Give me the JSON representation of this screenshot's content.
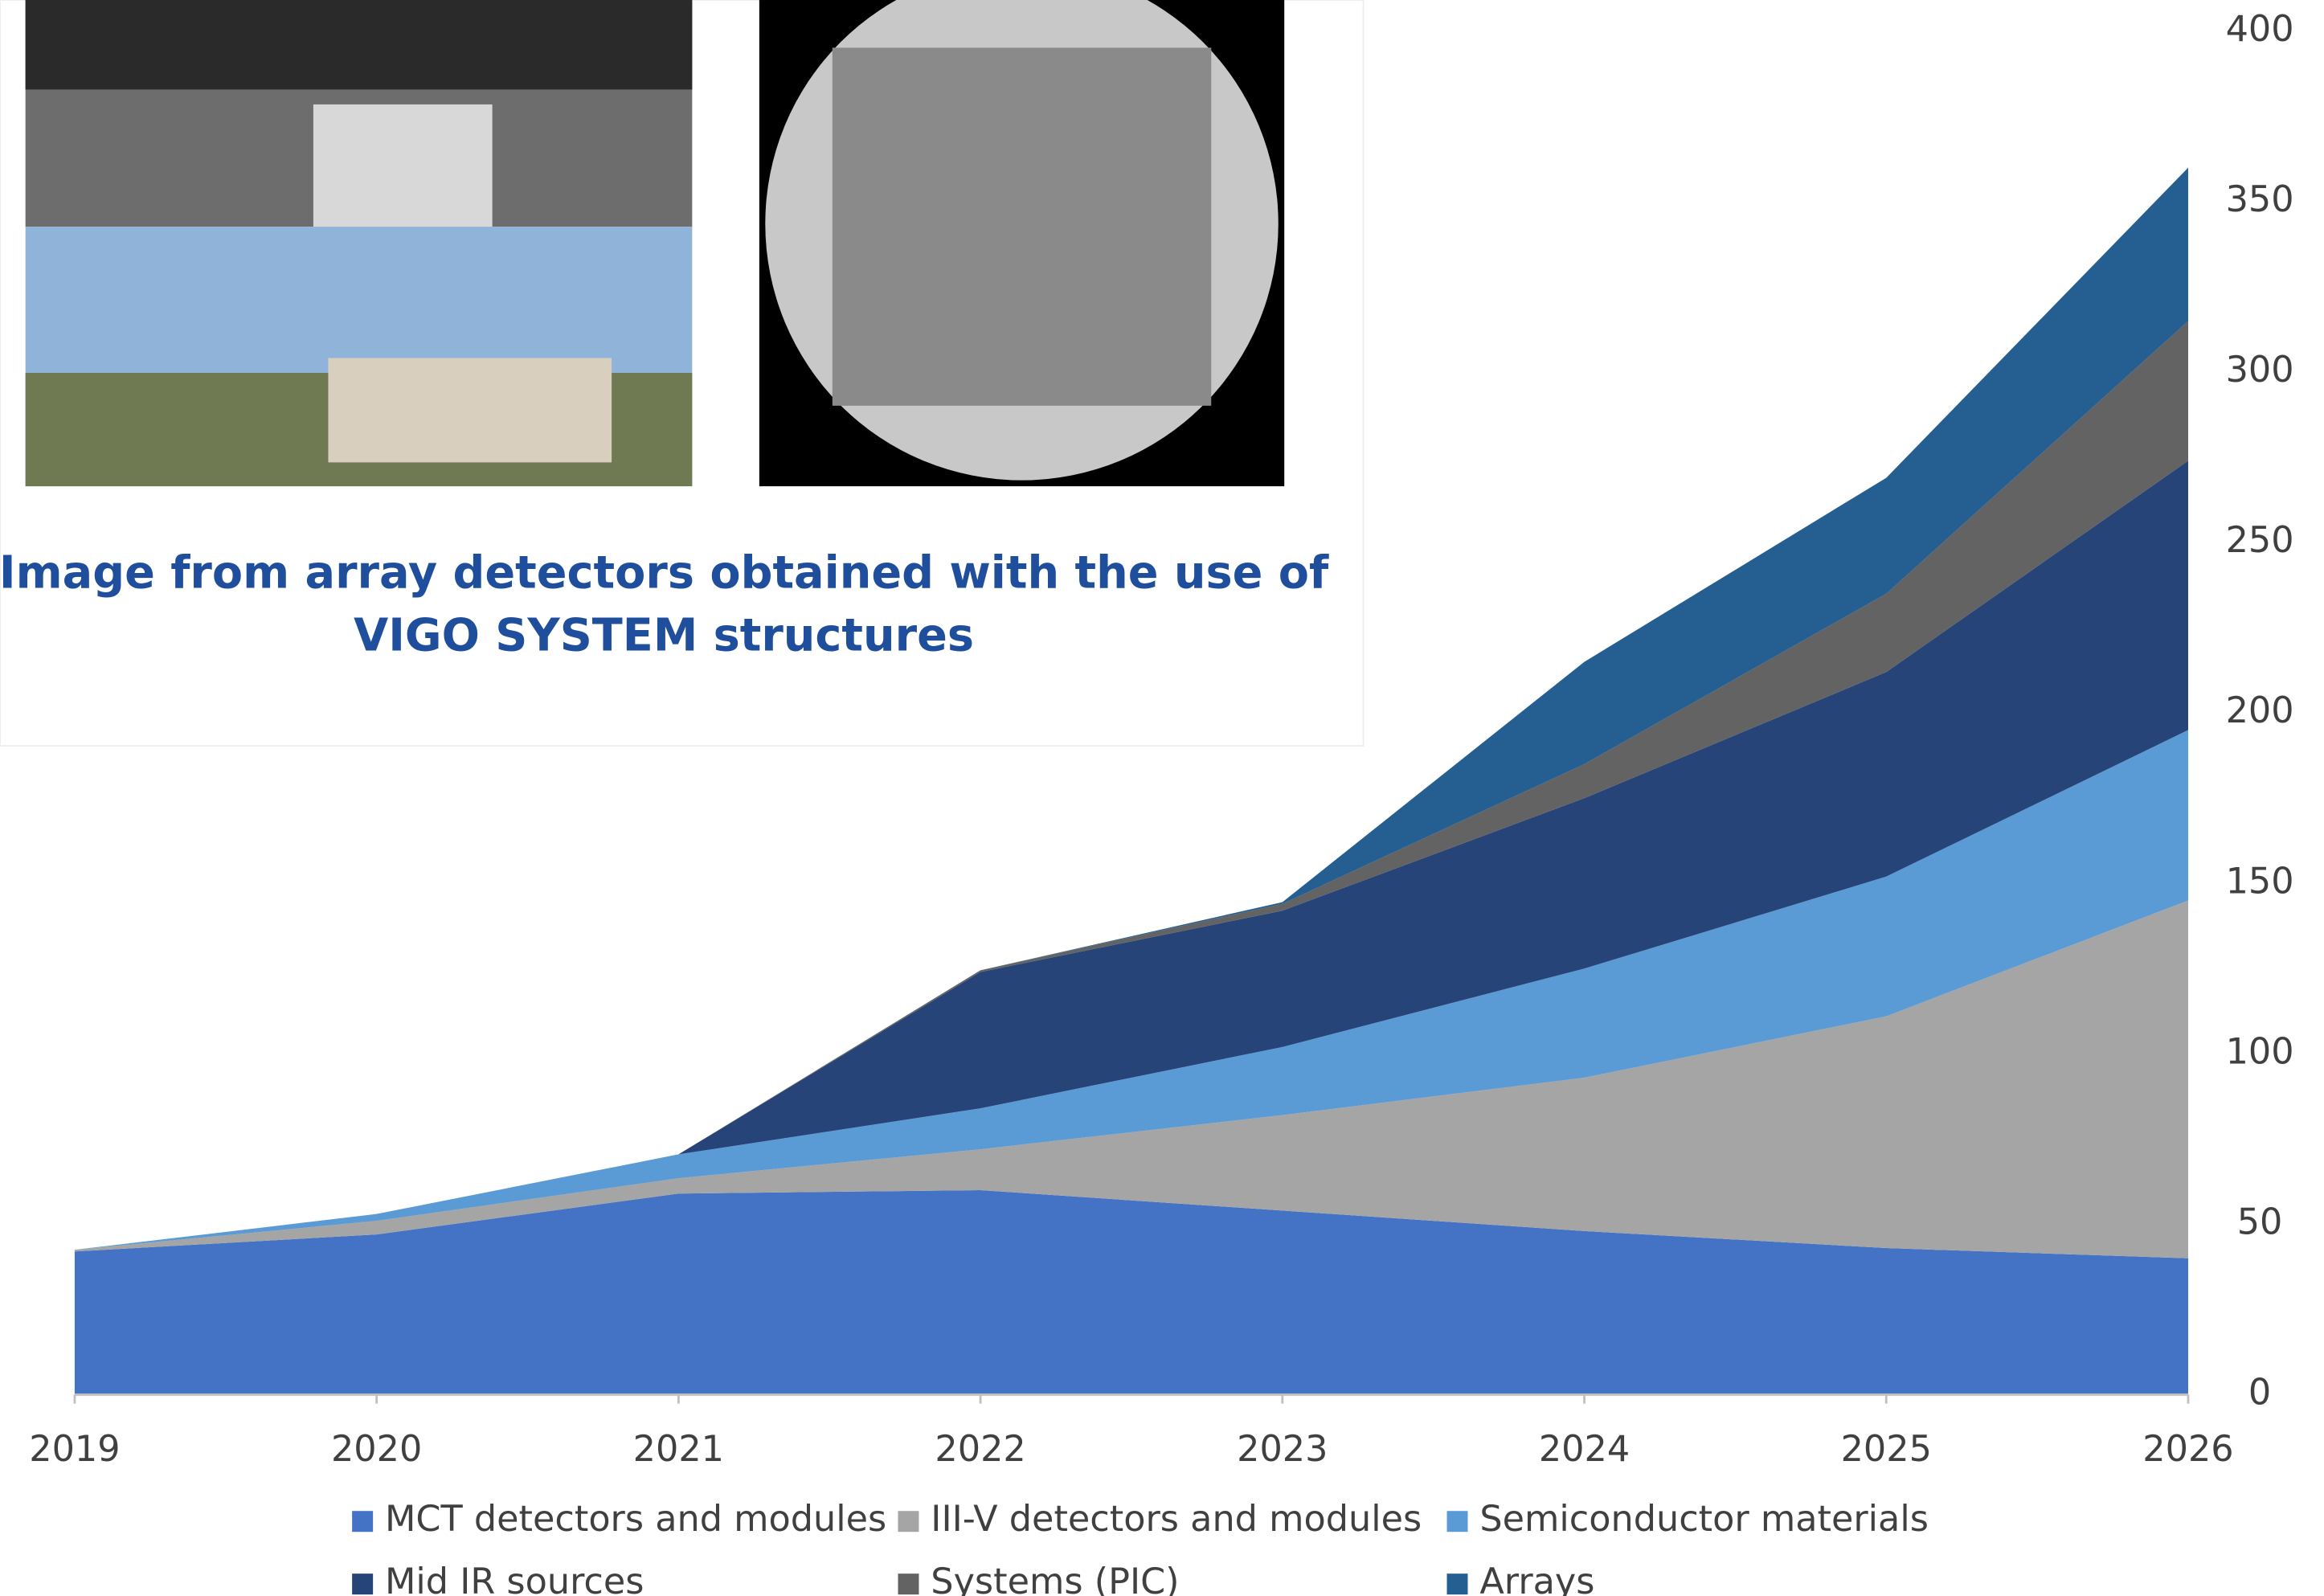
{
  "panel": {
    "caption": [
      "Image from array detectors obtained with the use of",
      "VIGO SYSTEM structures"
    ]
  },
  "chart_data": {
    "type": "stacked-area",
    "categories": [
      "2019",
      "2020",
      "2021",
      "2022",
      "2023",
      "2024",
      "2025",
      "2026"
    ],
    "series": [
      {
        "name": "MCT detectors and modules",
        "color": "#4472c4",
        "values": [
          42,
          47,
          59,
          60,
          54,
          48,
          43,
          40
        ]
      },
      {
        "name": "III-V detectors and modules",
        "color": "#a5a5a5",
        "values": [
          0.5,
          4,
          4.5,
          12,
          28,
          45,
          68,
          105
        ]
      },
      {
        "name": "Semiconductor materials",
        "color": "#5b9bd5",
        "values": [
          0,
          2,
          7,
          12,
          20,
          32,
          41,
          50
        ]
      },
      {
        "name": "Mid IR sources",
        "color": "#264478",
        "values": [
          0,
          0,
          0,
          40,
          40,
          50,
          60,
          79
        ]
      },
      {
        "name": "Systems (PIC)",
        "color": "#636363",
        "values": [
          0,
          0,
          0,
          0.5,
          2,
          10,
          23,
          41
        ]
      },
      {
        "name": "Arrays",
        "color": "#255e91",
        "values": [
          0,
          0,
          0,
          0,
          0.5,
          30,
          34,
          45
        ]
      }
    ],
    "ylim": [
      0,
      400
    ],
    "yticks": [
      0,
      50,
      100,
      150,
      200,
      250,
      300,
      350,
      400
    ],
    "y_axis_side": "right"
  }
}
